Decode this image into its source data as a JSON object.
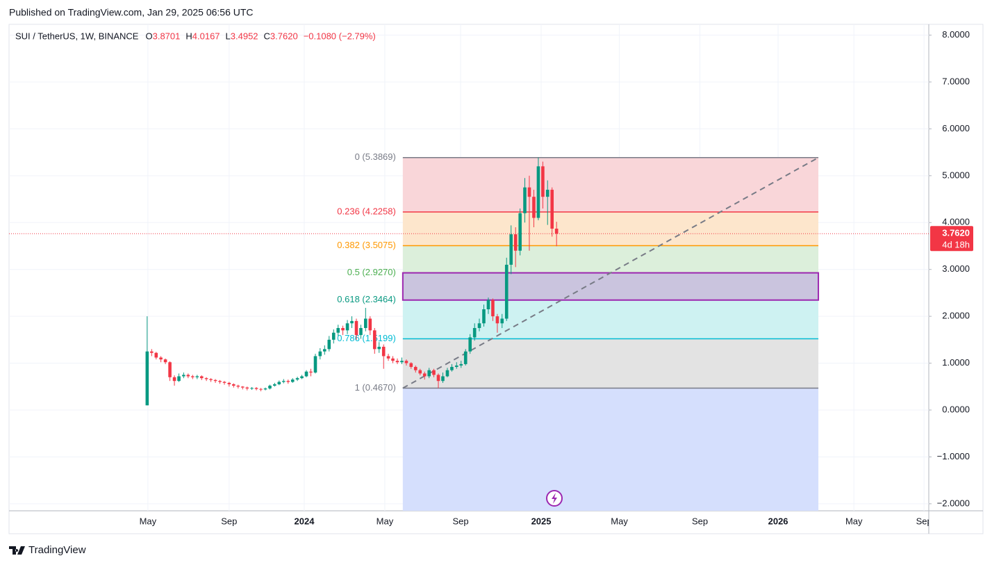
{
  "header": {
    "published": "Published on TradingView.com, Jan 29, 2025 06:56 UTC"
  },
  "footer": {
    "brand": "TradingView"
  },
  "chart_data": {
    "type": "candlestick",
    "symbol": "SUI / TetherUS, 1W, BINANCE",
    "legend": [
      {
        "label": "O",
        "value": 3.8701
      },
      {
        "label": "H",
        "value": 4.0167
      },
      {
        "label": "L",
        "value": 3.4952
      },
      {
        "label": "C",
        "value": {
          "value": 3.762,
          "label": "3.7620"
        }
      }
    ],
    "change": "−0.1080 (−2.79%)",
    "up_color": "#089981",
    "down_color": "#f23645",
    "xlim": [
      2022.754,
      2026.636
    ],
    "ylim": [
      -2.15,
      8.23
    ],
    "grid": true,
    "xticks": [
      {
        "value": 2023.34,
        "label": "May"
      },
      {
        "value": 2023.683,
        "label": "Sep"
      },
      2024,
      {
        "value": 2024.34,
        "label": "May"
      },
      {
        "value": 2024.66,
        "label": "Sep"
      },
      2025,
      {
        "value": 2025.33,
        "label": "May"
      },
      {
        "value": 2025.67,
        "label": "Sep"
      },
      2026,
      {
        "value": 2026.32,
        "label": "May"
      },
      {
        "value": 2026.616,
        "label": "Sep"
      }
    ],
    "yticks": [
      {
        "value": 8,
        "label": "8.0000"
      },
      {
        "value": 7,
        "label": "7.0000"
      },
      {
        "value": 6,
        "label": "6.0000"
      },
      {
        "value": 5,
        "label": "5.0000"
      },
      {
        "value": 4,
        "label": "4.0000"
      },
      {
        "value": 3,
        "label": "3.0000"
      },
      {
        "value": 2,
        "label": "2.0000"
      },
      {
        "value": 1,
        "label": "1.0000"
      },
      {
        "value": 0,
        "label": "0.0000"
      },
      {
        "value": -1,
        "label": "−1.0000"
      },
      {
        "value": -2,
        "label": "−2.0000"
      }
    ],
    "x": [
      2023.337,
      2023.356,
      2023.375,
      2023.395,
      2023.414,
      2023.433,
      2023.452,
      2023.471,
      2023.491,
      2023.51,
      2023.529,
      2023.548,
      2023.567,
      2023.587,
      2023.606,
      2023.625,
      2023.644,
      2023.663,
      2023.683,
      2023.702,
      2023.721,
      2023.74,
      2023.759,
      2023.779,
      2023.798,
      2023.817,
      2023.836,
      2023.855,
      2023.875,
      2023.894,
      2023.913,
      2023.932,
      2023.951,
      2023.971,
      2023.99,
      2024.009,
      2024.028,
      2024.047,
      2024.067,
      2024.086,
      2024.105,
      2024.124,
      2024.143,
      2024.163,
      2024.182,
      2024.201,
      2024.22,
      2024.239,
      2024.259,
      2024.278,
      2024.297,
      2024.316,
      2024.335,
      2024.355,
      2024.374,
      2024.393,
      2024.412,
      2024.431,
      2024.451,
      2024.47,
      2024.489,
      2024.508,
      2024.527,
      2024.547,
      2024.566,
      2024.585,
      2024.604,
      2024.623,
      2024.643,
      2024.662,
      2024.681,
      2024.7,
      2024.719,
      2024.739,
      2024.758,
      2024.777,
      2024.796,
      2024.815,
      2024.835,
      2024.854,
      2024.873,
      2024.892,
      2024.911,
      2024.931,
      2024.95,
      2024.969,
      2024.988,
      2025.007,
      2025.027,
      2025.046,
      2025.065
    ],
    "open": [
      0.1,
      1.25,
      1.22,
      1.12,
      1.08,
      1.02,
      0.7,
      0.62,
      0.72,
      0.75,
      0.72,
      0.7,
      0.72,
      0.68,
      0.66,
      0.64,
      0.62,
      0.6,
      0.58,
      0.55,
      0.52,
      0.5,
      0.48,
      0.46,
      0.47,
      0.45,
      0.44,
      0.46,
      0.52,
      0.55,
      0.6,
      0.62,
      0.6,
      0.65,
      0.68,
      0.72,
      0.82,
      0.8,
      1.15,
      1.25,
      1.3,
      1.5,
      1.65,
      1.75,
      1.7,
      1.85,
      1.9,
      1.6,
      1.75,
      1.95,
      1.7,
      1.3,
      1.35,
      1.15,
      1.1,
      1.05,
      1.02,
      1.05,
      1.0,
      0.92,
      0.85,
      0.78,
      0.72,
      0.85,
      0.75,
      0.62,
      0.72,
      0.85,
      0.92,
      0.95,
      0.98,
      1.25,
      1.55,
      1.75,
      1.85,
      2.15,
      2.35,
      2.0,
      1.85,
      1.95,
      3.1,
      3.75,
      3.4,
      4.2,
      4.75,
      4.55,
      4.1,
      5.2,
      4.55,
      4.7,
      3.8701
    ],
    "high": [
      2.0,
      1.3,
      1.24,
      1.15,
      1.1,
      1.04,
      0.74,
      0.78,
      0.8,
      0.78,
      0.75,
      0.75,
      0.74,
      0.7,
      0.68,
      0.66,
      0.64,
      0.62,
      0.6,
      0.57,
      0.54,
      0.51,
      0.5,
      0.49,
      0.49,
      0.47,
      0.48,
      0.54,
      0.58,
      0.63,
      0.66,
      0.65,
      0.68,
      0.71,
      0.75,
      0.85,
      0.88,
      1.2,
      1.32,
      1.38,
      1.58,
      1.72,
      1.82,
      1.8,
      1.92,
      2.0,
      1.95,
      1.82,
      2.18,
      2.0,
      1.75,
      1.45,
      1.4,
      1.2,
      1.15,
      1.1,
      1.12,
      1.08,
      1.02,
      0.95,
      0.88,
      0.82,
      0.9,
      0.88,
      0.78,
      0.8,
      0.9,
      0.98,
      1.02,
      1.05,
      1.3,
      1.62,
      1.85,
      1.95,
      2.25,
      2.4,
      2.38,
      2.05,
      2.05,
      3.25,
      3.94,
      3.9,
      4.3,
      4.95,
      5.0,
      4.7,
      5.3869,
      5.3,
      4.9,
      4.75,
      4.0167
    ],
    "low": [
      0.1,
      1.15,
      1.08,
      1.02,
      0.98,
      0.62,
      0.52,
      0.6,
      0.68,
      0.68,
      0.66,
      0.66,
      0.64,
      0.62,
      0.6,
      0.58,
      0.56,
      0.54,
      0.5,
      0.48,
      0.46,
      0.44,
      0.42,
      0.43,
      0.42,
      0.4,
      0.42,
      0.44,
      0.5,
      0.53,
      0.57,
      0.56,
      0.58,
      0.62,
      0.66,
      0.7,
      0.72,
      0.78,
      1.08,
      1.18,
      1.25,
      1.42,
      1.58,
      1.6,
      1.62,
      1.75,
      1.5,
      1.52,
      1.68,
      1.6,
      1.2,
      1.22,
      0.88,
      1.05,
      1.0,
      0.98,
      0.98,
      0.95,
      0.88,
      0.8,
      0.74,
      0.65,
      0.68,
      0.7,
      0.467,
      0.58,
      0.7,
      0.82,
      0.88,
      0.9,
      0.95,
      1.2,
      1.48,
      1.68,
      1.78,
      2.05,
      1.9,
      1.65,
      1.75,
      1.9,
      2.9,
      3.05,
      3.3,
      4.0,
      3.4,
      3.9,
      4.05,
      4.3,
      3.95,
      3.7,
      3.4952
    ],
    "close": [
      1.25,
      1.22,
      1.12,
      1.08,
      1.02,
      0.7,
      0.62,
      0.72,
      0.75,
      0.72,
      0.7,
      0.72,
      0.68,
      0.66,
      0.64,
      0.62,
      0.6,
      0.58,
      0.55,
      0.52,
      0.5,
      0.48,
      0.46,
      0.47,
      0.45,
      0.44,
      0.46,
      0.52,
      0.55,
      0.6,
      0.62,
      0.6,
      0.65,
      0.68,
      0.72,
      0.82,
      0.8,
      1.15,
      1.25,
      1.3,
      1.5,
      1.65,
      1.75,
      1.7,
      1.85,
      1.9,
      1.6,
      1.75,
      1.95,
      1.7,
      1.3,
      1.35,
      1.15,
      1.1,
      1.05,
      1.02,
      1.05,
      1.0,
      0.92,
      0.85,
      0.78,
      0.72,
      0.85,
      0.75,
      0.62,
      0.72,
      0.85,
      0.92,
      0.95,
      0.98,
      1.25,
      1.55,
      1.75,
      1.85,
      2.15,
      2.35,
      2.0,
      1.85,
      1.95,
      3.1,
      3.75,
      3.4,
      4.2,
      4.75,
      4.55,
      4.1,
      5.2,
      4.55,
      4.7,
      3.8701,
      3.762
    ],
    "last_price": {
      "value": 3.762,
      "label": "3.7620",
      "countdown": "4d 18h",
      "color": "#f23645"
    },
    "fib": {
      "x_range": [
        2024.416,
        2026.17
      ],
      "levels": [
        {
          "ratio": 0,
          "value": 5.3869,
          "label": "0 (5.3869)",
          "color": "#787b86",
          "fill": "#f9d6d9"
        },
        {
          "ratio": 0.236,
          "value": 4.2258,
          "label": "0.236 (4.2258)",
          "color": "#f23645",
          "fill": "#fde6cc"
        },
        {
          "ratio": 0.382,
          "value": 3.5075,
          "label": "0.382 (3.5075)",
          "color": "#ff9800",
          "fill": "#dcefdb"
        },
        {
          "ratio": 0.5,
          "value": 2.927,
          "label": "0.5 (2.9270)",
          "color": "#4caf50",
          "fill": "#d6ecea"
        },
        {
          "ratio": 0.618,
          "value": 2.3464,
          "label": "0.618 (2.3464)",
          "color": "#089981",
          "fill": "#cef2f2"
        },
        {
          "ratio": 0.786,
          "value": 1.5199,
          "label": "0.786 (1.5199)",
          "color": "#00bcd4",
          "fill": "#e3e3e3"
        },
        {
          "ratio": 1,
          "value": 0.467,
          "label": "1 (0.4670)",
          "color": "#787b86",
          "fill": "#d5dffd"
        }
      ]
    },
    "rectangle": {
      "x": [
        2024.416,
        2026.17
      ],
      "y": [
        2.927,
        2.3464
      ],
      "color": "#9c27b0"
    },
    "trendline": {
      "x": [
        2024.416,
        2026.17
      ],
      "y": [
        0.467,
        5.3869
      ],
      "color": "#787b86"
    }
  }
}
